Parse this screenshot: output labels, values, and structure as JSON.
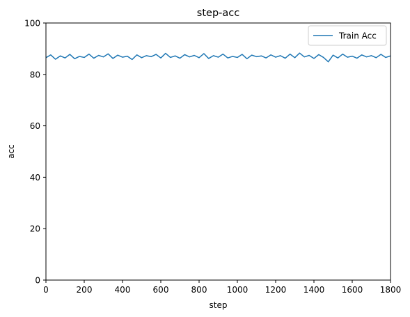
{
  "chart_data": {
    "type": "line",
    "title": "step-acc",
    "xlabel": "step",
    "ylabel": "acc",
    "xlim": [
      0,
      1800
    ],
    "ylim": [
      0,
      100
    ],
    "xticks": [
      "0",
      "200",
      "400",
      "600",
      "800",
      "1000",
      "1200",
      "1400",
      "1600",
      "1800"
    ],
    "yticks": [
      "0",
      "20",
      "40",
      "60",
      "80",
      "100"
    ],
    "grid": false,
    "legend_position": "top-right",
    "line_color": "#1f77b4",
    "series": [
      {
        "name": "Train Acc",
        "x": [
          0,
          25,
          50,
          75,
          100,
          125,
          150,
          175,
          200,
          225,
          250,
          275,
          300,
          325,
          350,
          375,
          400,
          425,
          450,
          475,
          500,
          525,
          550,
          575,
          600,
          625,
          650,
          675,
          700,
          725,
          750,
          775,
          800,
          825,
          850,
          875,
          900,
          925,
          950,
          975,
          1000,
          1025,
          1050,
          1075,
          1100,
          1125,
          1150,
          1175,
          1200,
          1225,
          1250,
          1275,
          1300,
          1325,
          1350,
          1375,
          1400,
          1425,
          1450,
          1475,
          1500,
          1525,
          1550,
          1575,
          1600,
          1625,
          1650,
          1675,
          1700,
          1725,
          1750,
          1775,
          1800
        ],
        "values": [
          86.5,
          87.6,
          85.9,
          87.2,
          86.4,
          87.8,
          86.1,
          87.0,
          86.6,
          87.9,
          86.3,
          87.4,
          86.8,
          88.0,
          86.2,
          87.5,
          86.7,
          87.1,
          85.8,
          87.6,
          86.5,
          87.3,
          86.9,
          87.8,
          86.4,
          88.2,
          86.6,
          87.2,
          86.3,
          87.7,
          86.8,
          87.4,
          86.5,
          88.1,
          86.2,
          87.3,
          86.7,
          87.9,
          86.4,
          87.0,
          86.6,
          87.8,
          86.1,
          87.5,
          86.9,
          87.2,
          86.4,
          87.6,
          86.7,
          87.3,
          86.3,
          87.9,
          86.5,
          88.3,
          86.8,
          87.4,
          86.2,
          87.7,
          86.6,
          84.9,
          87.5,
          86.4,
          87.9,
          86.7,
          87.1,
          86.3,
          87.6,
          86.8,
          87.3,
          86.5,
          87.8,
          86.6,
          87.2
        ]
      }
    ]
  }
}
